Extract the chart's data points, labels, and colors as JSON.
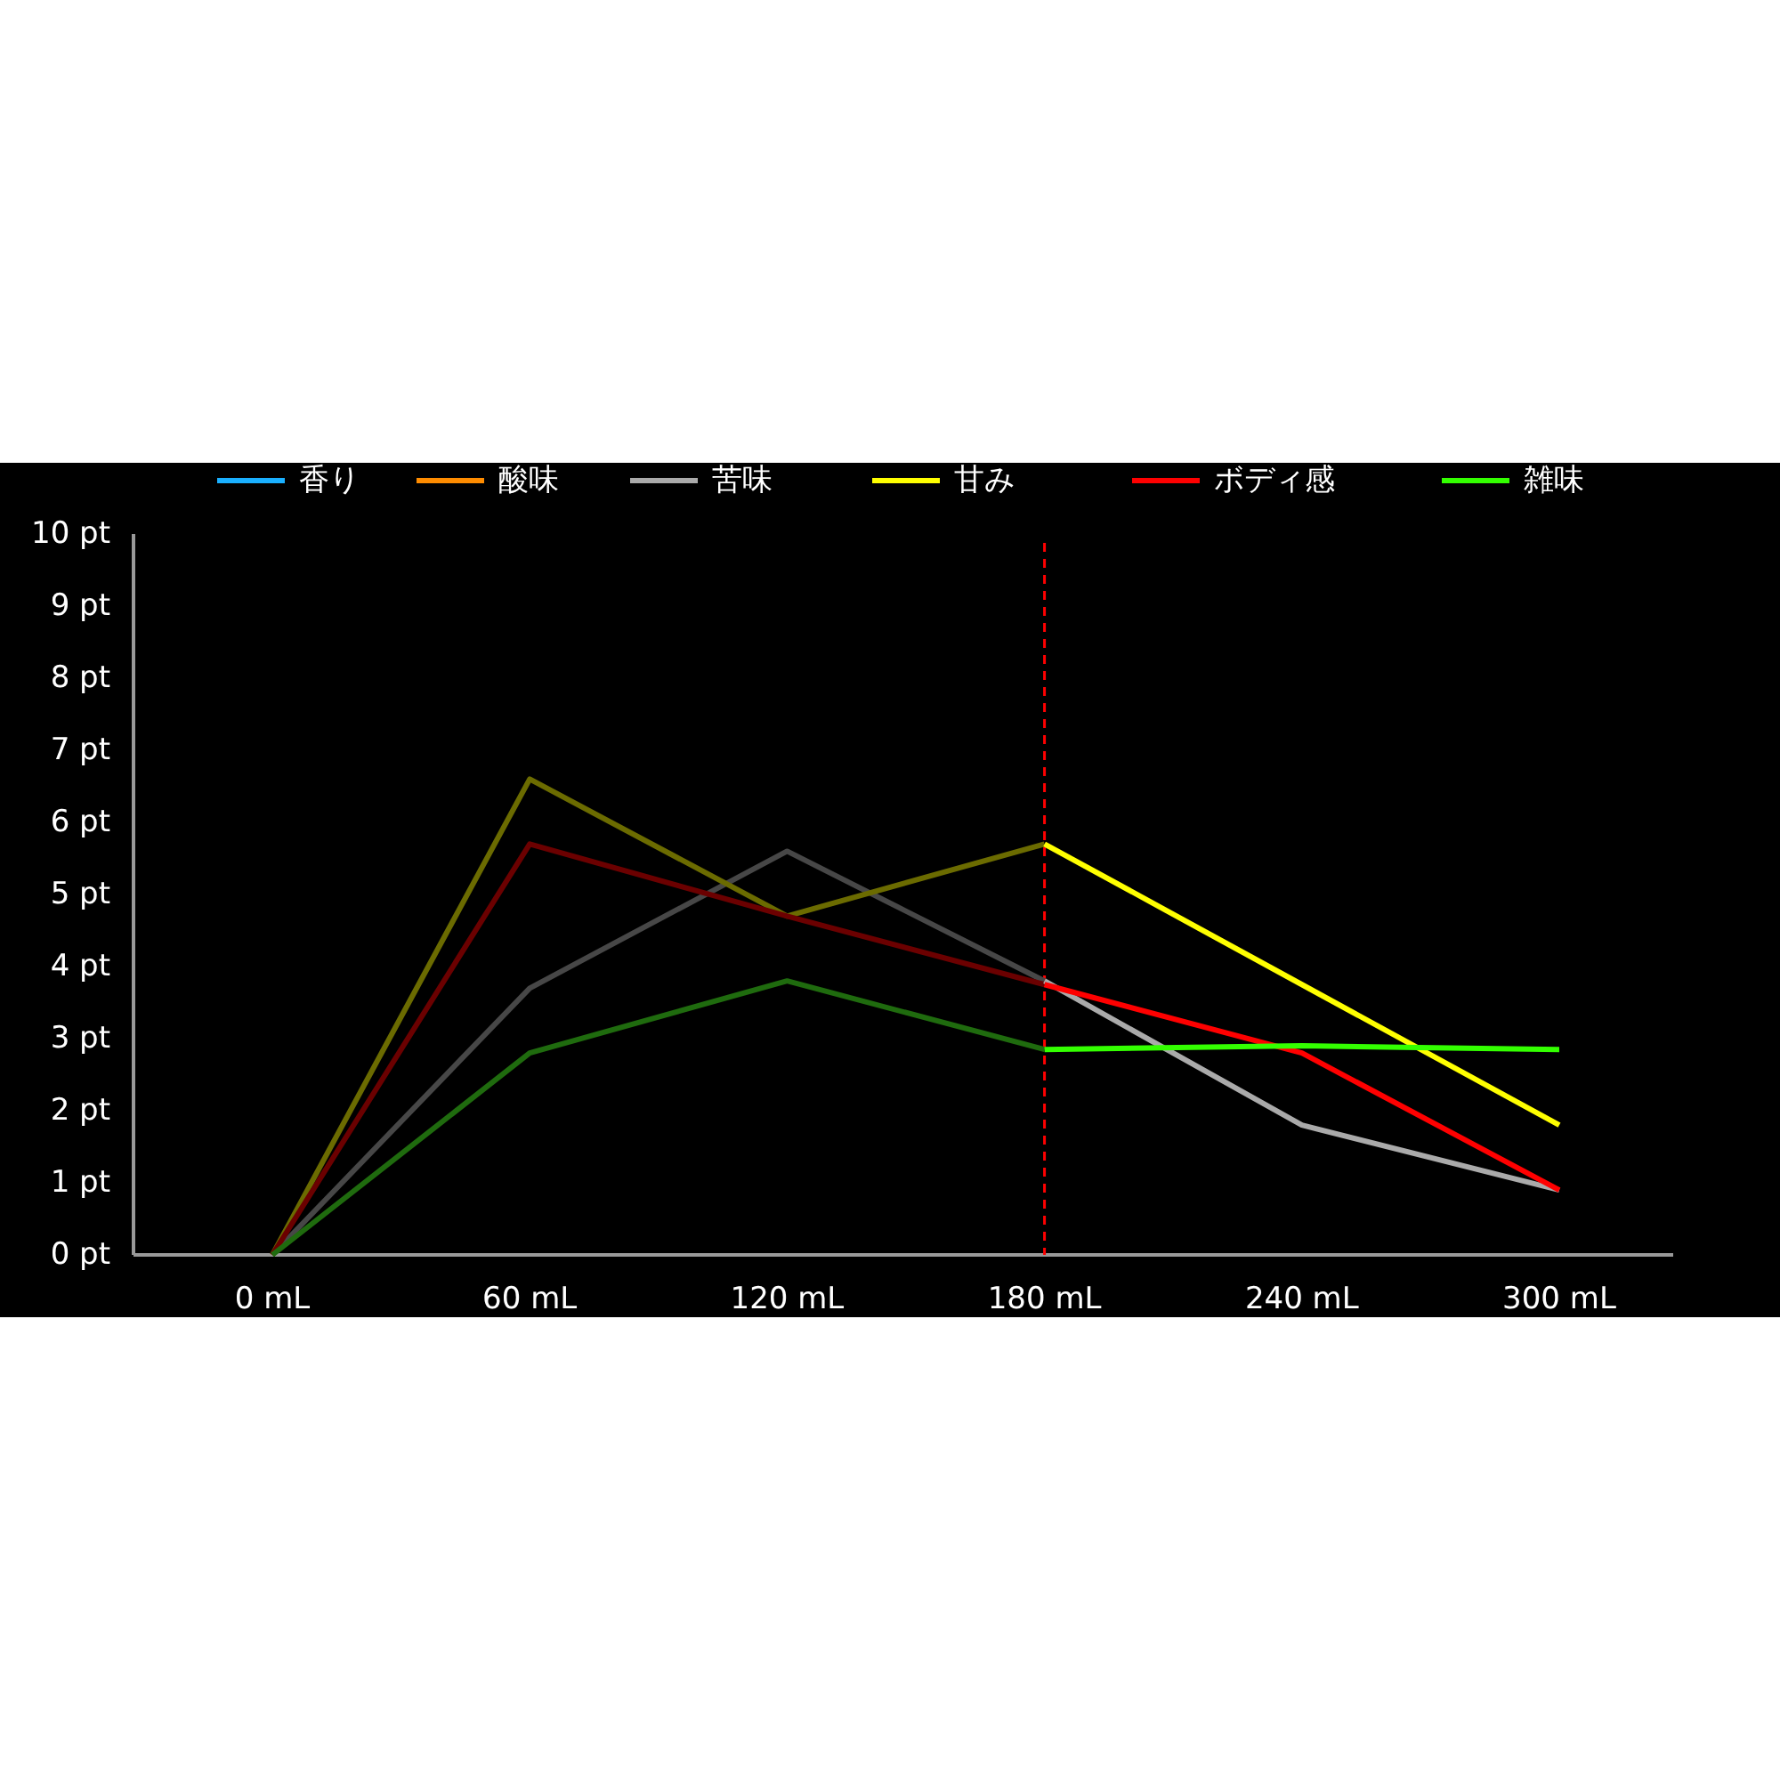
{
  "chart_data": {
    "type": "line",
    "categories": [
      "0 mL",
      "60 mL",
      "120 mL",
      "180 mL",
      "240 mL",
      "300 mL"
    ],
    "series": [
      {
        "name": "香り",
        "color": "#1ab0ff",
        "values": [
          null,
          null,
          null,
          null,
          null,
          null
        ]
      },
      {
        "name": "酸味",
        "color": "#ff8c00",
        "values": [
          null,
          null,
          null,
          null,
          null,
          null
        ]
      },
      {
        "name": "苦味",
        "color": "#aaaaaa",
        "values": [
          null,
          null,
          null,
          3.8,
          1.8,
          0.9
        ]
      },
      {
        "name": "甘み",
        "color": "#ffff00",
        "values": [
          null,
          null,
          null,
          5.7,
          3.75,
          1.8
        ]
      },
      {
        "name": "ボディ感",
        "color": "#ff0000",
        "values": [
          null,
          null,
          null,
          3.75,
          2.8,
          0.9
        ]
      },
      {
        "name": "雑味",
        "color": "#33ff00",
        "values": [
          null,
          null,
          null,
          2.85,
          2.9,
          2.85
        ]
      },
      {
        "color": "#474747",
        "values": [
          0,
          3.7,
          5.6,
          3.8,
          null,
          null
        ]
      },
      {
        "color": "#6b6b00",
        "values": [
          0,
          6.6,
          4.7,
          5.7,
          null,
          null
        ]
      },
      {
        "color": "#6b0000",
        "values": [
          0,
          5.7,
          4.7,
          3.75,
          null,
          null
        ]
      },
      {
        "color": "#1f6b0e",
        "values": [
          0,
          2.8,
          3.8,
          2.85,
          null,
          null
        ]
      }
    ],
    "ylim": [
      0,
      10
    ],
    "yticks": [
      {
        "value": 0,
        "label": "0 pt"
      },
      {
        "value": 1,
        "label": "1 pt"
      },
      {
        "value": 2,
        "label": "2 pt"
      },
      {
        "value": 3,
        "label": "3 pt"
      },
      {
        "value": 4,
        "label": "4 pt"
      },
      {
        "value": 5,
        "label": "5 pt"
      },
      {
        "value": 6,
        "label": "6 pt"
      },
      {
        "value": 7,
        "label": "7 pt"
      },
      {
        "value": 8,
        "label": "8 pt"
      },
      {
        "value": 9,
        "label": "9 pt"
      },
      {
        "value": 10,
        "label": "10 pt"
      }
    ],
    "ref_lines": [
      {
        "axis": "x",
        "value": "180 mL",
        "color": "#ff0000",
        "line_style": "dashed"
      }
    ],
    "grid": false,
    "legend": "top",
    "marker": "none",
    "line_style": "solid"
  }
}
